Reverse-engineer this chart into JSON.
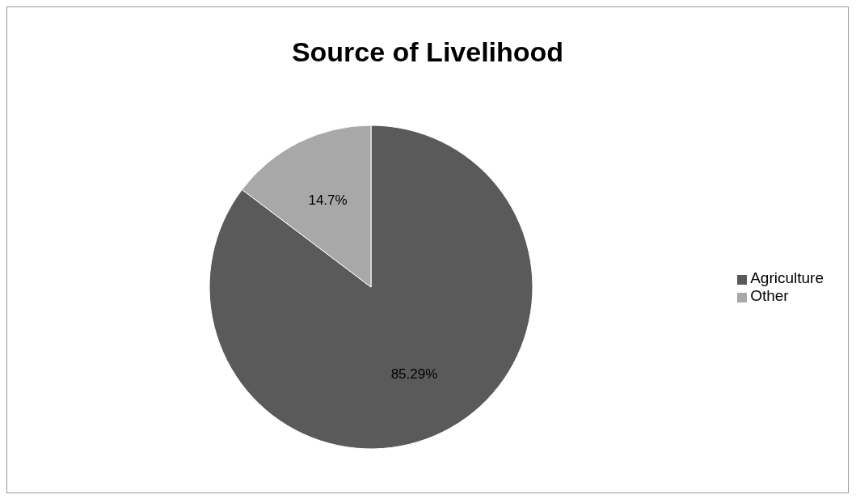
{
  "chart_data": {
    "type": "pie",
    "title": "Source of Livelihood",
    "categories": [
      "Agriculture",
      "Other"
    ],
    "values": [
      85.29,
      14.7
    ],
    "colors": [
      "#5a5a5a",
      "#a8a8a8"
    ],
    "value_labels": [
      "85.29%",
      "14.7%"
    ],
    "legend": "right"
  }
}
